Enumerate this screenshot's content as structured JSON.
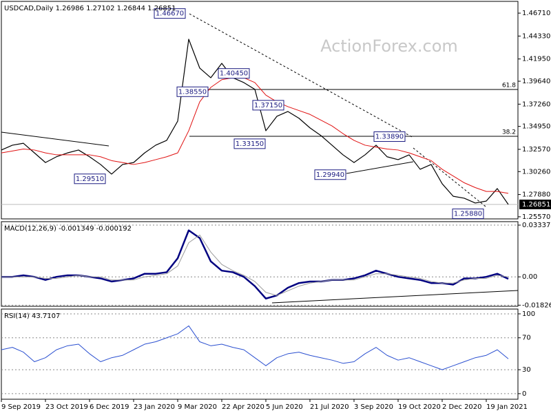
{
  "chart_data": [
    {
      "type": "line",
      "title": "USDCAD,Daily",
      "subtitle": "1.26986 1.27102 1.26844 1.26851",
      "watermark": "ActionForex.com",
      "ylim": [
        1.2535,
        1.4793
      ],
      "yticks": [
        {
          "value": 1.4671,
          "label": "1.46710"
        },
        {
          "value": 1.4433,
          "label": "1.44330"
        },
        {
          "value": 1.4195,
          "label": "1.41950"
        },
        {
          "value": 1.3964,
          "label": "1.39640"
        },
        {
          "value": 1.3726,
          "label": "1.37260"
        },
        {
          "value": 1.3495,
          "label": "1.34950"
        },
        {
          "value": 1.3257,
          "label": "1.32570"
        },
        {
          "value": 1.3026,
          "label": "1.30260"
        },
        {
          "value": 1.2788,
          "label": "1.27880"
        },
        {
          "value": 1.2557,
          "label": "1.25570"
        }
      ],
      "grid": false,
      "last_price": 1.26851,
      "fib_levels": [
        61.8,
        38.2
      ],
      "annotations": [
        {
          "label": "1.46670",
          "value": 1.4667
        },
        {
          "label": "1.40450",
          "value": 1.4045
        },
        {
          "label": "1.38550",
          "value": 1.3855
        },
        {
          "label": "1.37150",
          "value": 1.3715
        },
        {
          "label": "1.33150",
          "value": 1.3315
        },
        {
          "label": "1.29510",
          "value": 1.2951
        },
        {
          "label": "1.29940",
          "value": 1.2994
        },
        {
          "label": "1.33890",
          "value": 1.3389
        },
        {
          "label": "1.25880",
          "value": 1.2588
        }
      ],
      "series": [
        {
          "color": "#000000",
          "width": 1.2,
          "values": [
            1.325,
            1.33,
            1.332,
            1.322,
            1.312,
            1.318,
            1.322,
            1.325,
            1.318,
            1.31,
            1.3,
            1.31,
            1.312,
            1.322,
            1.33,
            1.335,
            1.355,
            1.44,
            1.41,
            1.4,
            1.415,
            1.4,
            1.395,
            1.388,
            1.345,
            1.36,
            1.365,
            1.358,
            1.348,
            1.34,
            1.33,
            1.32,
            1.312,
            1.32,
            1.33,
            1.318,
            1.315,
            1.32,
            1.305,
            1.31,
            1.29,
            1.277,
            1.275,
            1.27,
            1.272,
            1.285,
            1.2685
          ]
        },
        {
          "color": "#e01010",
          "width": 1,
          "values": [
            1.322,
            1.324,
            1.326,
            1.325,
            1.322,
            1.32,
            1.32,
            1.32,
            1.32,
            1.318,
            1.314,
            1.312,
            1.31,
            1.312,
            1.315,
            1.318,
            1.322,
            1.345,
            1.375,
            1.39,
            1.398,
            1.4,
            1.4,
            1.395,
            1.382,
            1.375,
            1.37,
            1.366,
            1.362,
            1.356,
            1.35,
            1.342,
            1.335,
            1.33,
            1.328,
            1.326,
            1.325,
            1.322,
            1.318,
            1.314,
            1.305,
            1.298,
            1.291,
            1.286,
            1.282,
            1.282,
            1.28
          ]
        }
      ]
    },
    {
      "type": "line",
      "title": "MACD(12,26,9) -0.001349 -0.000192",
      "ylim": [
        -0.019,
        0.0356
      ],
      "yticks": [
        0.03337,
        {
          "value": 0,
          "label": "0.00"
        },
        -0.018262
      ],
      "grid": true,
      "series": [
        {
          "color": "#000080",
          "width": 2.5,
          "values": [
            0,
            0,
            0.001,
            0,
            -0.002,
            0,
            0.001,
            0.001,
            0,
            -0.001,
            -0.003,
            -0.002,
            -0.001,
            0.002,
            0.002,
            0.003,
            0.012,
            0.03,
            0.025,
            0.01,
            0.004,
            0.003,
            0,
            -0.006,
            -0.014,
            -0.012,
            -0.007,
            -0.004,
            -0.003,
            -0.003,
            -0.002,
            -0.002,
            -0.001,
            0.001,
            0.004,
            0.002,
            0,
            -0.001,
            -0.002,
            -0.004,
            -0.004,
            -0.005,
            -0.001,
            -0.001,
            0,
            0.002,
            -0.0013
          ]
        },
        {
          "color": "#9a9a9a",
          "width": 1,
          "values": [
            0,
            0,
            0,
            0,
            -0.001,
            -0.001,
            0,
            0.001,
            0,
            0,
            -0.002,
            -0.002,
            -0.002,
            0,
            0.001,
            0.002,
            0.007,
            0.022,
            0.027,
            0.016,
            0.008,
            0.004,
            0.001,
            -0.003,
            -0.01,
            -0.012,
            -0.009,
            -0.006,
            -0.004,
            -0.003,
            -0.002,
            -0.002,
            -0.002,
            0,
            0.002,
            0.002,
            0.001,
            0,
            -0.001,
            -0.003,
            -0.004,
            -0.004,
            -0.002,
            -0.001,
            -0.001,
            0.001,
            0
          ]
        }
      ]
    },
    {
      "type": "line",
      "title": "RSI(14) 43.7107",
      "ylim": [
        -7,
        106
      ],
      "yticks": [
        100,
        70,
        30,
        0
      ],
      "grid": true,
      "categories": [
        "9 Sep 2019",
        null,
        null,
        null,
        "23 Oct 2019",
        null,
        null,
        null,
        "6 Dec 2019",
        null,
        null,
        null,
        "23 Jan 2020",
        null,
        null,
        null,
        "9 Mar 2020",
        null,
        null,
        null,
        "22 Apr 2020",
        null,
        null,
        null,
        "5 Jun 2020",
        null,
        null,
        null,
        "21 Jul 2020",
        null,
        null,
        null,
        "3 Sep 2020",
        null,
        null,
        null,
        "19 Oct 2020",
        null,
        null,
        null,
        "2 Dec 2020",
        null,
        null,
        null,
        "19 Jan 2021",
        null,
        null
      ],
      "series": [
        {
          "color": "#2a4fd0",
          "width": 1,
          "values": [
            55,
            58,
            52,
            40,
            45,
            55,
            60,
            62,
            50,
            40,
            45,
            48,
            55,
            62,
            65,
            70,
            75,
            85,
            65,
            60,
            62,
            58,
            55,
            45,
            35,
            45,
            50,
            52,
            48,
            45,
            42,
            38,
            40,
            50,
            58,
            48,
            42,
            45,
            40,
            35,
            30,
            35,
            40,
            45,
            48,
            55,
            43.7
          ]
        }
      ]
    }
  ]
}
